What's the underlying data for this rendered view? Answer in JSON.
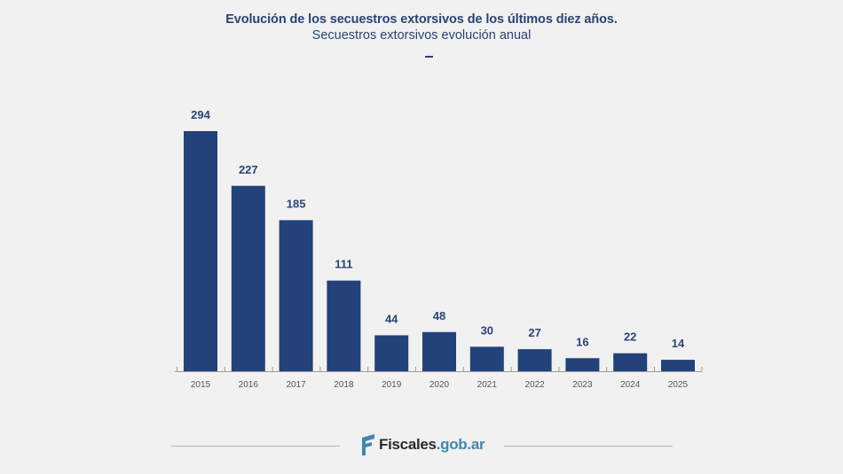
{
  "chart_data": {
    "type": "bar",
    "title": "Evolución de los secuestros extorsivos de los últimos diez años.",
    "subtitle": "Secuestros extorsivos evolución anual",
    "xlabel": "",
    "ylabel": "",
    "categories": [
      "2015",
      "2016",
      "2017",
      "2018",
      "2019",
      "2020",
      "2021",
      "2022",
      "2023",
      "2024",
      "2025"
    ],
    "values": [
      294,
      227,
      185,
      111,
      44,
      48,
      30,
      27,
      16,
      22,
      14
    ],
    "ylim": [
      0,
      294
    ],
    "grid": false,
    "legend": "none",
    "data_labels": true,
    "bar_color": "#23427a",
    "label_color": "#2a4475",
    "tick_label_color": "#555555"
  },
  "footer": {
    "logo_part1": "Fiscales",
    "logo_part2": ".gob.ar",
    "logo_icon": "fiscales-flag-icon"
  }
}
